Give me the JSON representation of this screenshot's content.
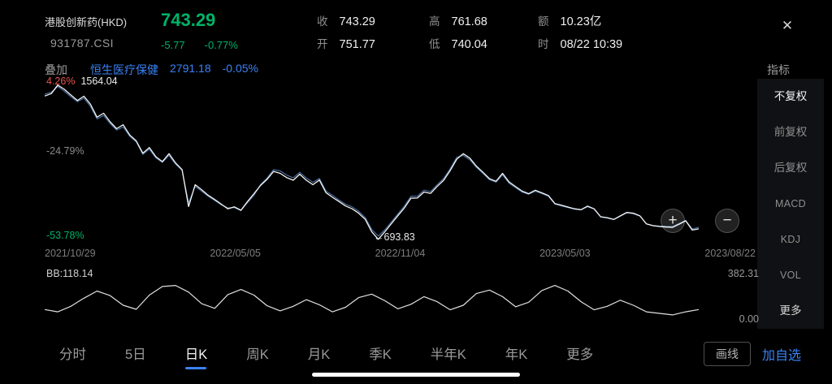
{
  "header": {
    "name": "港股创新药(HKD)",
    "code": "931787.CSI",
    "price": "743.29",
    "change": "-5.77",
    "change_pct": "-0.77%",
    "close_icon": "✕",
    "stats": [
      {
        "label": "收",
        "value": "743.29"
      },
      {
        "label": "开",
        "value": "751.77"
      },
      {
        "label": "高",
        "value": "761.68"
      },
      {
        "label": "低",
        "value": "740.04"
      },
      {
        "label": "额",
        "value": "10.23亿"
      },
      {
        "label": "时",
        "value": "08/22 10:39"
      }
    ]
  },
  "overlay_bar": {
    "overlay_button": "叠加",
    "index_name": "恒生医疗保健",
    "index_value": "2791.18",
    "index_pct": "-0.05%",
    "indicator_menu_label": "指标"
  },
  "side_menu": {
    "items": [
      {
        "label": "不复权",
        "active": true
      },
      {
        "label": "前复权",
        "active": false
      },
      {
        "label": "后复权",
        "active": false
      },
      {
        "label": "MACD",
        "active": false
      },
      {
        "label": "KDJ",
        "active": false
      },
      {
        "label": "VOL",
        "active": false
      },
      {
        "label": "更多",
        "active": false
      }
    ]
  },
  "chart_labels": {
    "top_pct": "4.26%",
    "top_value": "1564.04",
    "mid_pct": "-24.79%",
    "bottom_pct": "-53.78%",
    "low_marker": "←693.83",
    "sub_indicator": "BB:118.14",
    "sub_max": "382.31",
    "sub_min": "0.00"
  },
  "zoom_controls": {
    "plus": "+",
    "minus": "−"
  },
  "tabs": [
    {
      "label": "分时",
      "active": false
    },
    {
      "label": "5日",
      "active": false
    },
    {
      "label": "日K",
      "active": true
    },
    {
      "label": "周K",
      "active": false
    },
    {
      "label": "月K",
      "active": false
    },
    {
      "label": "季K",
      "active": false
    },
    {
      "label": "半年K",
      "active": false
    },
    {
      "label": "年K",
      "active": false
    },
    {
      "label": "更多",
      "active": false
    }
  ],
  "footer": {
    "draw_line": "画线",
    "add_watchlist": "加自选"
  },
  "colors": {
    "down_green": "#00b368",
    "up_red": "#e8544e",
    "accent_blue": "#3a82f7",
    "main_line": "#f5f5f5",
    "overlay_line": "#5b89c4"
  },
  "chart_data": {
    "type": "line",
    "title": "港股创新药(HKD) 931787.CSI 日K",
    "x_ticks": [
      "2021/10/29",
      "2022/05/05",
      "2022/11/04",
      "2023/05/03",
      "2023/08/22"
    ],
    "ylim": [
      693.83,
      1564.04
    ],
    "y_pct_labels": [
      "4.26%",
      "-24.79%",
      "-53.78%"
    ],
    "latest": 743.29,
    "low_label": 693.83,
    "high_label": 1564.04,
    "legend_position": "none",
    "grid": false,
    "series": [
      {
        "name": "港股创新药(HKD)",
        "color": "#f5f5f5",
        "values": [
          1492,
          1521,
          1564,
          1535,
          1498,
          1462,
          1481,
          1430,
          1388,
          1405,
          1352,
          1308,
          1325,
          1262,
          1224,
          1185,
          1212,
          1155,
          1122,
          1162,
          1105,
          1062,
          884,
          1002,
          968,
          932,
          903,
          872,
          841,
          882,
          858,
          902,
          941,
          983,
          1012,
          1052,
          1071,
          1042,
          1022,
          1051,
          1012,
          982,
          1003,
          962,
          931,
          902,
          872,
          851,
          821,
          782,
          742,
          694,
          731,
          772,
          812,
          852,
          901,
          932,
          961,
          948,
          982,
          1012,
          1062,
          1121,
          1182,
          1152,
          1102,
          1062,
          1021,
          1001,
          1041,
          1022,
          991,
          961,
          941,
          956,
          936,
          916,
          901,
          886,
          871,
          856,
          846,
          861,
          841,
          826,
          816,
          801,
          816,
          831,
          821,
          801,
          786,
          771,
          761,
          753,
          746,
          759,
          773,
          751,
          743
        ]
      },
      {
        "name": "恒生医疗保健",
        "color": "#5b89c4",
        "values": [
          1502,
          1528,
          1556,
          1524,
          1488,
          1455,
          1470,
          1418,
          1378,
          1392,
          1342,
          1300,
          1312,
          1255,
          1218,
          1178,
          1202,
          1148,
          1118,
          1152,
          1098,
          1058,
          905,
          992,
          960,
          926,
          898,
          868,
          846,
          878,
          856,
          896,
          932,
          988,
          1020,
          1062,
          1085,
          1056,
          1036,
          1062,
          1025,
          995,
          1012,
          972,
          942,
          910,
          882,
          862,
          832,
          792,
          755,
          712,
          742,
          782,
          822,
          862,
          912,
          942,
          972,
          958,
          992,
          1022,
          1072,
          1132,
          1172,
          1142,
          1095,
          1055,
          1015,
          996,
          1032,
          1015,
          985,
          955,
          938,
          950,
          932,
          912,
          898,
          882,
          868,
          854,
          845,
          858,
          839,
          825,
          814,
          800,
          814,
          828,
          818,
          800,
          786,
          772,
          764,
          757,
          751,
          763,
          776,
          757,
          752
        ]
      }
    ],
    "sub_chart": {
      "name": "BB",
      "current": 118.14,
      "ylim": [
        0,
        382.31
      ],
      "values": [
        118,
        95,
        150,
        230,
        300,
        255,
        160,
        120,
        260,
        345,
        355,
        290,
        175,
        130,
        265,
        315,
        260,
        155,
        105,
        150,
        215,
        165,
        95,
        140,
        235,
        270,
        205,
        125,
        170,
        245,
        195,
        115,
        160,
        275,
        310,
        245,
        145,
        190,
        305,
        355,
        300,
        195,
        115,
        150,
        210,
        160,
        95,
        80,
        65,
        95,
        118
      ]
    }
  }
}
